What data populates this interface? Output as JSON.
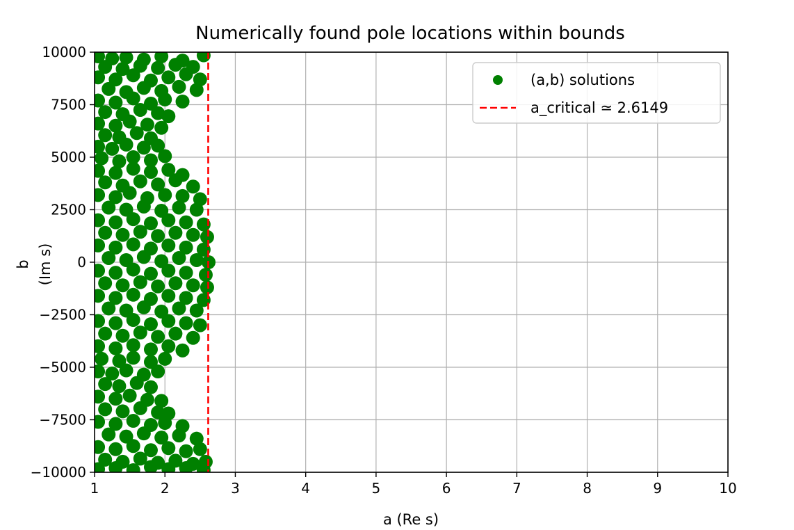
{
  "chart_data": {
    "type": "scatter",
    "title": "Numerically found pole locations within bounds",
    "xlabel": "a (Re s)",
    "ylabel_line1": "b",
    "ylabel_line2": "(Im s)",
    "xlim": [
      1,
      10
    ],
    "ylim": [
      -10000,
      10000
    ],
    "xticks": [
      1,
      2,
      3,
      4,
      5,
      6,
      7,
      8,
      9,
      10
    ],
    "yticks": [
      -10000,
      -7500,
      -5000,
      -2500,
      0,
      2500,
      5000,
      7500,
      10000
    ],
    "ytick_labels": [
      "−10000",
      "−7500",
      "−5000",
      "−2500",
      "0",
      "2500",
      "5000",
      "7500",
      "10000"
    ],
    "grid": true,
    "legend_placement": "top-right",
    "series": [
      {
        "name": "(a,b) solutions",
        "kind": "scatter",
        "color": "#008000",
        "points": [
          [
            1.05,
            9800
          ],
          [
            1.25,
            9700
          ],
          [
            1.45,
            9750
          ],
          [
            1.7,
            9650
          ],
          [
            1.95,
            9800
          ],
          [
            2.25,
            9600
          ],
          [
            2.55,
            9850
          ],
          [
            1.15,
            9300
          ],
          [
            1.4,
            9200
          ],
          [
            1.65,
            9350
          ],
          [
            1.9,
            9250
          ],
          [
            2.15,
            9400
          ],
          [
            2.4,
            9300
          ],
          [
            1.05,
            8800
          ],
          [
            1.3,
            8700
          ],
          [
            1.55,
            8900
          ],
          [
            1.8,
            8650
          ],
          [
            2.05,
            8800
          ],
          [
            2.3,
            8950
          ],
          [
            2.5,
            8700
          ],
          [
            1.2,
            8250
          ],
          [
            1.45,
            8100
          ],
          [
            1.7,
            8300
          ],
          [
            1.95,
            8150
          ],
          [
            2.2,
            8350
          ],
          [
            2.45,
            8200
          ],
          [
            1.05,
            7700
          ],
          [
            1.3,
            7600
          ],
          [
            1.55,
            7800
          ],
          [
            1.8,
            7550
          ],
          [
            2.0,
            7750
          ],
          [
            2.25,
            7650
          ],
          [
            1.15,
            7150
          ],
          [
            1.4,
            7050
          ],
          [
            1.65,
            7250
          ],
          [
            1.9,
            7100
          ],
          [
            2.05,
            6950
          ],
          [
            1.05,
            6600
          ],
          [
            1.3,
            6500
          ],
          [
            1.5,
            6700
          ],
          [
            1.75,
            6550
          ],
          [
            1.95,
            6400
          ],
          [
            1.15,
            6050
          ],
          [
            1.35,
            5950
          ],
          [
            1.6,
            6150
          ],
          [
            1.8,
            5900
          ],
          [
            1.05,
            5500
          ],
          [
            1.25,
            5400
          ],
          [
            1.45,
            5600
          ],
          [
            1.7,
            5450
          ],
          [
            1.9,
            5550
          ],
          [
            1.1,
            4950
          ],
          [
            1.35,
            4800
          ],
          [
            1.55,
            5000
          ],
          [
            1.8,
            4850
          ],
          [
            2.0,
            5050
          ],
          [
            1.05,
            4350
          ],
          [
            1.3,
            4250
          ],
          [
            1.55,
            4450
          ],
          [
            1.8,
            4300
          ],
          [
            2.05,
            4400
          ],
          [
            2.25,
            4150
          ],
          [
            1.15,
            3800
          ],
          [
            1.4,
            3650
          ],
          [
            1.65,
            3850
          ],
          [
            1.9,
            3700
          ],
          [
            2.15,
            3900
          ],
          [
            2.4,
            3600
          ],
          [
            1.05,
            3200
          ],
          [
            1.3,
            3100
          ],
          [
            1.5,
            3300
          ],
          [
            1.75,
            3050
          ],
          [
            2.0,
            3200
          ],
          [
            2.25,
            3150
          ],
          [
            2.5,
            3000
          ],
          [
            1.2,
            2600
          ],
          [
            1.45,
            2500
          ],
          [
            1.7,
            2650
          ],
          [
            1.95,
            2450
          ],
          [
            2.2,
            2600
          ],
          [
            2.45,
            2500
          ],
          [
            1.05,
            2000
          ],
          [
            1.3,
            1900
          ],
          [
            1.55,
            2050
          ],
          [
            1.8,
            1850
          ],
          [
            2.05,
            2000
          ],
          [
            2.3,
            1900
          ],
          [
            2.55,
            1800
          ],
          [
            1.15,
            1400
          ],
          [
            1.4,
            1300
          ],
          [
            1.65,
            1450
          ],
          [
            1.9,
            1250
          ],
          [
            2.15,
            1400
          ],
          [
            2.4,
            1300
          ],
          [
            2.6,
            1200
          ],
          [
            1.05,
            800
          ],
          [
            1.3,
            700
          ],
          [
            1.55,
            850
          ],
          [
            1.8,
            650
          ],
          [
            2.05,
            800
          ],
          [
            2.3,
            700
          ],
          [
            2.55,
            600
          ],
          [
            1.2,
            200
          ],
          [
            1.45,
            100
          ],
          [
            1.7,
            250
          ],
          [
            1.95,
            50
          ],
          [
            2.2,
            200
          ],
          [
            2.45,
            100
          ],
          [
            2.62,
            0
          ],
          [
            1.05,
            -400
          ],
          [
            1.3,
            -500
          ],
          [
            1.55,
            -350
          ],
          [
            1.8,
            -550
          ],
          [
            2.05,
            -400
          ],
          [
            2.3,
            -500
          ],
          [
            2.58,
            -600
          ],
          [
            1.15,
            -1000
          ],
          [
            1.4,
            -1100
          ],
          [
            1.65,
            -950
          ],
          [
            1.9,
            -1150
          ],
          [
            2.15,
            -1000
          ],
          [
            2.4,
            -1100
          ],
          [
            2.6,
            -1200
          ],
          [
            1.05,
            -1600
          ],
          [
            1.3,
            -1700
          ],
          [
            1.55,
            -1550
          ],
          [
            1.8,
            -1750
          ],
          [
            2.05,
            -1600
          ],
          [
            2.3,
            -1700
          ],
          [
            2.55,
            -1800
          ],
          [
            1.2,
            -2200
          ],
          [
            1.45,
            -2300
          ],
          [
            1.7,
            -2150
          ],
          [
            1.95,
            -2350
          ],
          [
            2.2,
            -2200
          ],
          [
            2.45,
            -2300
          ],
          [
            1.05,
            -2800
          ],
          [
            1.3,
            -2900
          ],
          [
            1.55,
            -2750
          ],
          [
            1.8,
            -2950
          ],
          [
            2.05,
            -2800
          ],
          [
            2.3,
            -2900
          ],
          [
            2.5,
            -3000
          ],
          [
            1.15,
            -3400
          ],
          [
            1.4,
            -3500
          ],
          [
            1.65,
            -3350
          ],
          [
            1.9,
            -3550
          ],
          [
            2.15,
            -3400
          ],
          [
            2.4,
            -3600
          ],
          [
            1.05,
            -4000
          ],
          [
            1.3,
            -4100
          ],
          [
            1.55,
            -3950
          ],
          [
            1.8,
            -4150
          ],
          [
            2.05,
            -4000
          ],
          [
            2.25,
            -4200
          ],
          [
            1.1,
            -4600
          ],
          [
            1.35,
            -4700
          ],
          [
            1.55,
            -4550
          ],
          [
            1.8,
            -4750
          ],
          [
            2.0,
            -4600
          ],
          [
            1.05,
            -5200
          ],
          [
            1.25,
            -5300
          ],
          [
            1.45,
            -5150
          ],
          [
            1.7,
            -5350
          ],
          [
            1.9,
            -5200
          ],
          [
            1.15,
            -5800
          ],
          [
            1.35,
            -5900
          ],
          [
            1.6,
            -5750
          ],
          [
            1.8,
            -5950
          ],
          [
            1.05,
            -6400
          ],
          [
            1.3,
            -6500
          ],
          [
            1.5,
            -6350
          ],
          [
            1.75,
            -6550
          ],
          [
            1.95,
            -6600
          ],
          [
            1.15,
            -7000
          ],
          [
            1.4,
            -7100
          ],
          [
            1.65,
            -6950
          ],
          [
            1.9,
            -7150
          ],
          [
            2.05,
            -7200
          ],
          [
            1.05,
            -7600
          ],
          [
            1.3,
            -7700
          ],
          [
            1.55,
            -7550
          ],
          [
            1.8,
            -7750
          ],
          [
            2.0,
            -7650
          ],
          [
            2.25,
            -7800
          ],
          [
            1.2,
            -8200
          ],
          [
            1.45,
            -8300
          ],
          [
            1.7,
            -8150
          ],
          [
            1.95,
            -8350
          ],
          [
            2.2,
            -8250
          ],
          [
            2.45,
            -8400
          ],
          [
            1.05,
            -8800
          ],
          [
            1.3,
            -8900
          ],
          [
            1.55,
            -8750
          ],
          [
            1.8,
            -8950
          ],
          [
            2.05,
            -8850
          ],
          [
            2.3,
            -9000
          ],
          [
            2.5,
            -8900
          ],
          [
            1.15,
            -9400
          ],
          [
            1.4,
            -9500
          ],
          [
            1.65,
            -9350
          ],
          [
            1.9,
            -9550
          ],
          [
            2.15,
            -9450
          ],
          [
            2.4,
            -9600
          ],
          [
            2.58,
            -9500
          ],
          [
            1.05,
            -9850
          ],
          [
            1.3,
            -9800
          ],
          [
            1.55,
            -9900
          ],
          [
            1.8,
            -9750
          ],
          [
            2.05,
            -9850
          ],
          [
            2.3,
            -9800
          ],
          [
            2.55,
            -9900
          ]
        ]
      },
      {
        "name": "a_critical ≃ 2.6149",
        "kind": "vline",
        "x": 2.6149,
        "color": "#ff0000",
        "linestyle": "dashed"
      }
    ]
  }
}
